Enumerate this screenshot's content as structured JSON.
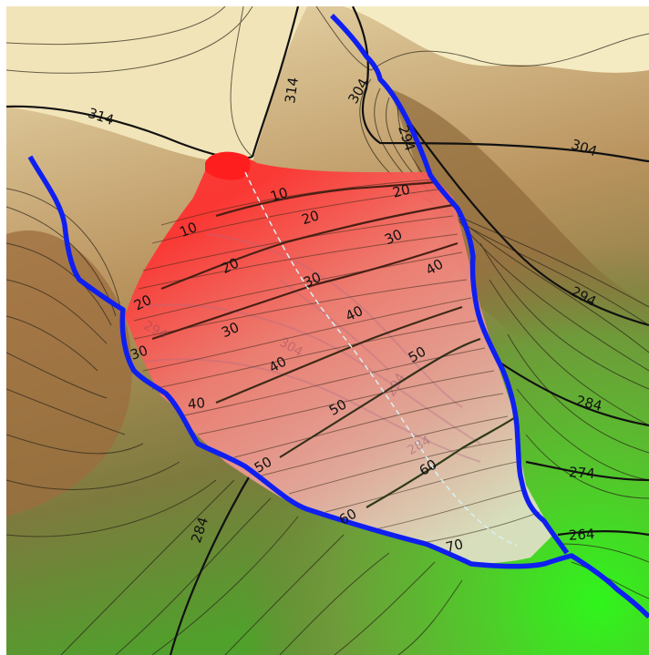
{
  "map": {
    "colors": {
      "terrain_high": "#f5ecc2",
      "terrain_mid": "#d8bf8f",
      "terrain_dark": "#9a6a3c",
      "terrain_olive": "#7c7b3e",
      "terrain_green": "#4fbf2a",
      "terrain_bright_green": "#2ff51c",
      "boundary": "#0f1ff0",
      "pit_red": "#ff2b2b",
      "pit_pale": "#f2c9c0",
      "depth_line": "#3a2a1a",
      "centerline": "#cfeef5"
    },
    "elevation_labels": [
      "314",
      "314",
      "304",
      "294",
      "304",
      "294",
      "284",
      "284",
      "274",
      "264"
    ],
    "depth_labels": [
      "10",
      "10",
      "20",
      "20",
      "20",
      "20",
      "30",
      "30",
      "30",
      "30",
      "40",
      "40",
      "40",
      "40",
      "50",
      "50",
      "50",
      "60",
      "60",
      "70"
    ],
    "faded_labels": [
      "294",
      "304",
      "294",
      "284"
    ]
  }
}
